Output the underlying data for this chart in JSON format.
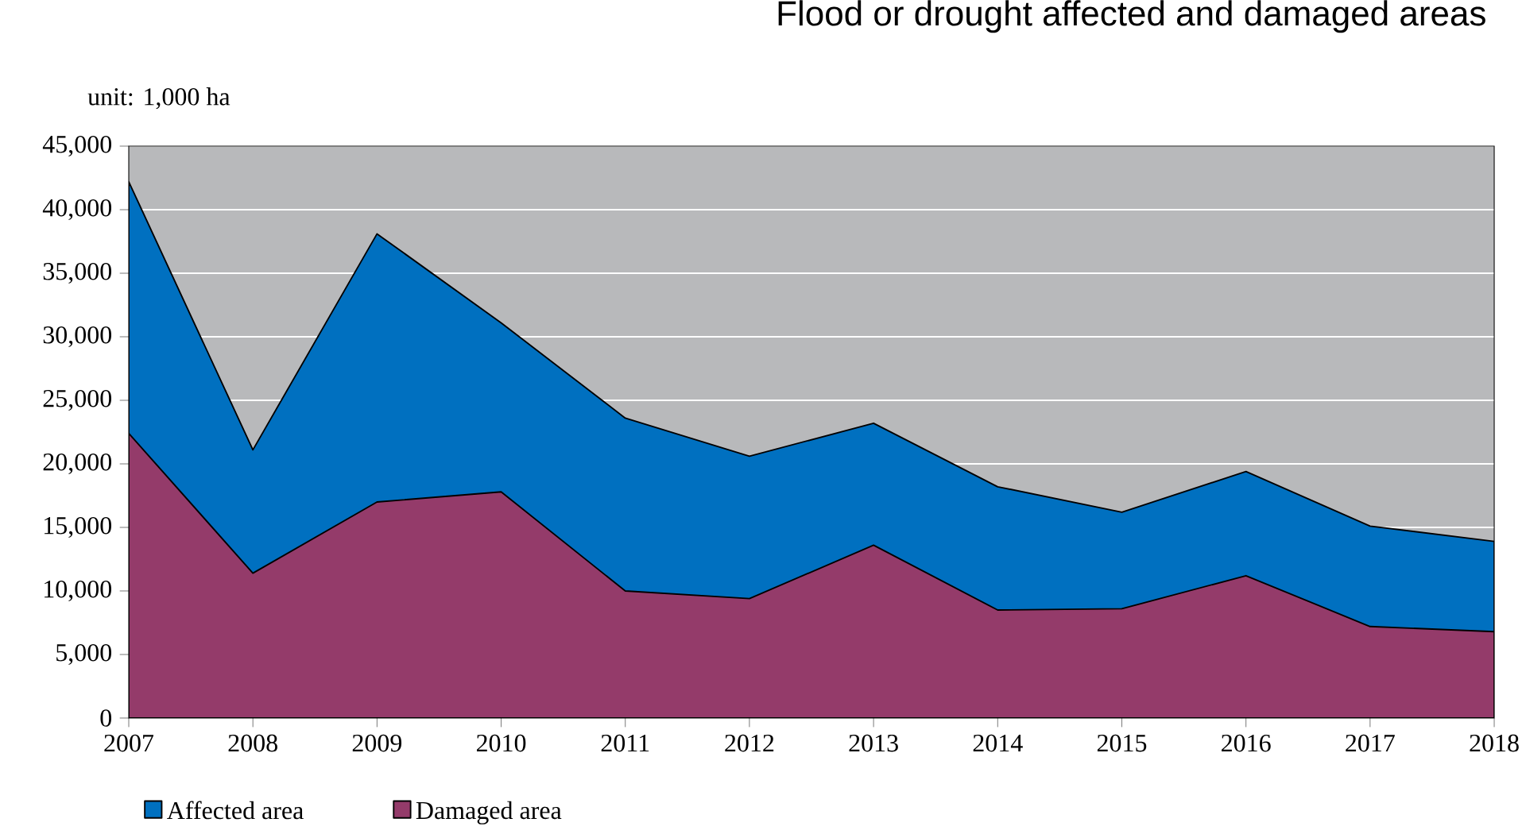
{
  "chart_data": {
    "type": "area",
    "title": "Flood or drought affected and damaged areas",
    "ylabel": "unit: 1,000 ha",
    "x": [
      2007,
      2008,
      2009,
      2010,
      2011,
      2012,
      2013,
      2014,
      2015,
      2016,
      2017,
      2018
    ],
    "series": [
      {
        "name": "Affected area",
        "color": "#0070c0",
        "values": [
          42200,
          21100,
          38100,
          31100,
          23600,
          20600,
          23200,
          18200,
          16200,
          19400,
          15100,
          13900
        ]
      },
      {
        "name": "Damaged area",
        "color": "#943b6a",
        "values": [
          22400,
          11400,
          17000,
          17800,
          10000,
          9400,
          13600,
          8500,
          8600,
          11200,
          7200,
          6800
        ]
      }
    ],
    "xlim": [
      2007,
      2018
    ],
    "xticks": [
      2007,
      2008,
      2009,
      2010,
      2011,
      2012,
      2013,
      2014,
      2015,
      2016,
      2017,
      2018
    ],
    "ylim": [
      0,
      45000
    ],
    "yticks": [
      0,
      {
        "value": 5000,
        "label": "5,000"
      },
      {
        "value": 10000,
        "label": "10,000"
      },
      {
        "value": 15000,
        "label": "15,000"
      },
      {
        "value": 20000,
        "label": "20,000"
      },
      {
        "value": 25000,
        "label": "25,000"
      },
      {
        "value": 30000,
        "label": "30,000"
      },
      {
        "value": 35000,
        "label": "35,000"
      },
      {
        "value": 40000,
        "label": "40,000"
      },
      {
        "value": 45000,
        "label": "45,000"
      }
    ],
    "grid": "y",
    "legend": "bottom"
  }
}
